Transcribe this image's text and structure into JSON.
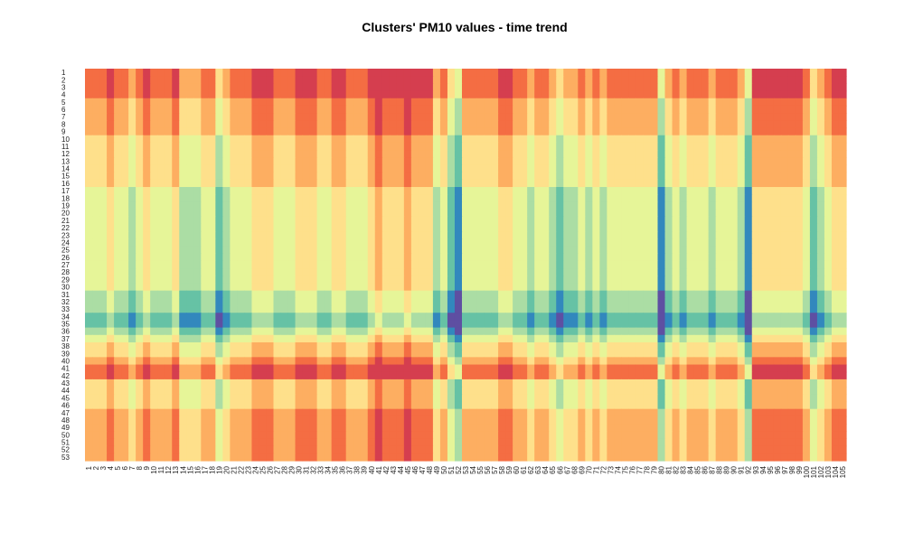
{
  "chart_data": {
    "type": "heatmap",
    "title": "Clusters' PM10 values - time trend",
    "x_tick_labels": [
      "1",
      "2",
      "3",
      "4",
      "5",
      "6",
      "7",
      "8",
      "9",
      "10",
      "11",
      "12",
      "13",
      "14",
      "15",
      "16",
      "17",
      "18",
      "19",
      "20",
      "21",
      "22",
      "23",
      "24",
      "25",
      "26",
      "27",
      "28",
      "29",
      "30",
      "31",
      "32",
      "33",
      "34",
      "35",
      "36",
      "37",
      "38",
      "39",
      "40",
      "41",
      "42",
      "43",
      "44",
      "45",
      "46",
      "47",
      "48",
      "49",
      "50",
      "51",
      "52",
      "53",
      "54",
      "55",
      "56",
      "57",
      "58",
      "59",
      "60",
      "61",
      "62",
      "63",
      "64",
      "65",
      "66",
      "67",
      "68",
      "69",
      "70",
      "71",
      "72",
      "73",
      "74",
      "75",
      "76",
      "77",
      "78",
      "79",
      "80",
      "81",
      "82",
      "83",
      "84",
      "85",
      "86",
      "87",
      "88",
      "89",
      "90",
      "91",
      "92",
      "93",
      "94",
      "95",
      "96",
      "97",
      "98",
      "99",
      "100",
      "101",
      "102",
      "103",
      "104",
      "105"
    ],
    "y_tick_labels": [
      "1",
      "2",
      "3",
      "4",
      "5",
      "6",
      "7",
      "8",
      "9",
      "10",
      "11",
      "12",
      "13",
      "14",
      "15",
      "16",
      "17",
      "18",
      "19",
      "20",
      "21",
      "22",
      "23",
      "24",
      "25",
      "26",
      "27",
      "28",
      "29",
      "30",
      "31",
      "32",
      "33",
      "34",
      "35",
      "36",
      "37",
      "38",
      "39",
      "40",
      "41",
      "42",
      "43",
      "44",
      "45",
      "46",
      "47",
      "48",
      "49",
      "50",
      "51",
      "52",
      "53"
    ],
    "color_scale": [
      "#5e4fa2",
      "#3288bd",
      "#66c2a5",
      "#abdda4",
      "#e6f598",
      "#fee08b",
      "#fdae61",
      "#f46d43",
      "#d53e4f"
    ],
    "value_range": [
      0,
      8
    ],
    "row_base": [
      7,
      7,
      7,
      7,
      6,
      6,
      6,
      6,
      6,
      5,
      5,
      5,
      5,
      5,
      5,
      5,
      4,
      4,
      4,
      4,
      4,
      4,
      4,
      4,
      4,
      4,
      4,
      4,
      4,
      4,
      3,
      3,
      3,
      2,
      2,
      3,
      4,
      5,
      5,
      6,
      7,
      7,
      5,
      5,
      5,
      5,
      6,
      6,
      6,
      6,
      6,
      6,
      6
    ],
    "col_offset": [
      0,
      0,
      0,
      1,
      0,
      0,
      -1,
      0,
      1,
      0,
      0,
      0,
      1,
      -1,
      -1,
      -1,
      0,
      0,
      -2,
      -1,
      0,
      0,
      0,
      1,
      1,
      1,
      0,
      0,
      0,
      1,
      1,
      1,
      0,
      0,
      1,
      1,
      0,
      0,
      0,
      1,
      2,
      1,
      1,
      1,
      2,
      1,
      1,
      1,
      -1,
      0,
      -2,
      -3,
      0,
      0,
      0,
      0,
      0,
      1,
      1,
      0,
      0,
      -1,
      0,
      0,
      -1,
      -2,
      -1,
      -1,
      0,
      -1,
      0,
      -1,
      0,
      0,
      0,
      0,
      0,
      0,
      0,
      -3,
      -1,
      0,
      -1,
      0,
      0,
      0,
      -1,
      0,
      0,
      0,
      -1,
      -3,
      1,
      1,
      1,
      1,
      1,
      1,
      1,
      0,
      -2,
      -1,
      0,
      1,
      1
    ],
    "legend": "none",
    "grid": false
  }
}
